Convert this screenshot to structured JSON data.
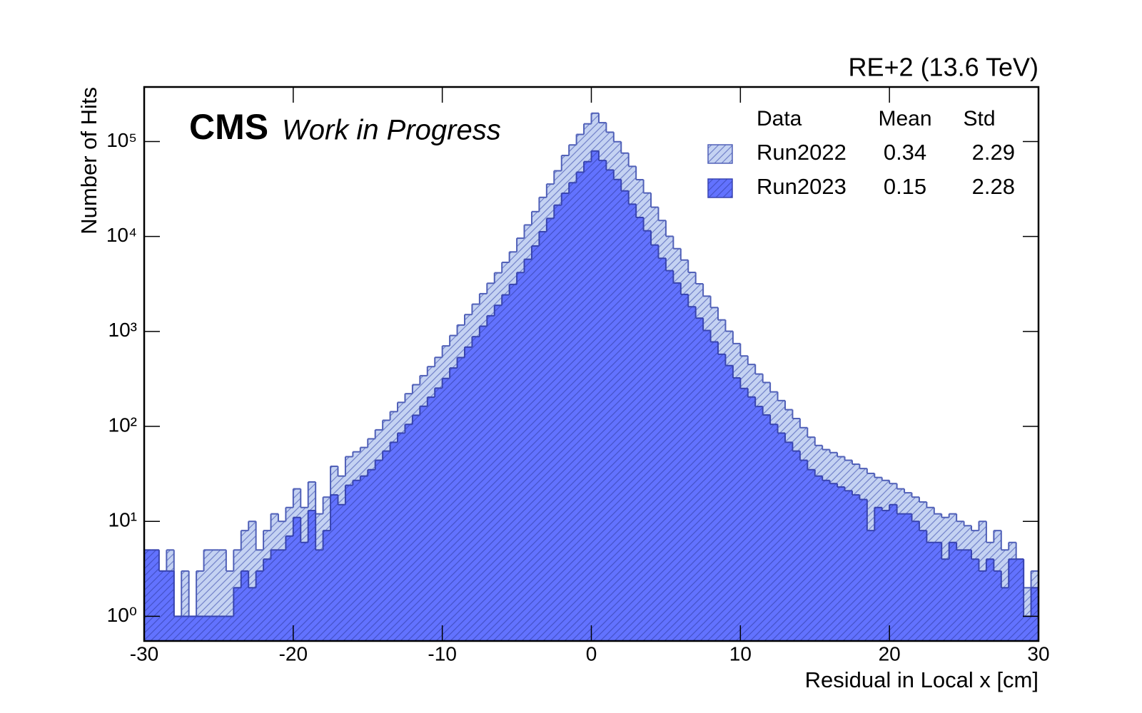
{
  "chart_data": {
    "type": "histogram",
    "title": "RE+2 (13.6 TeV)",
    "experiment": "CMS",
    "subtitle": "Work in Progress",
    "xlabel": "Residual in Local x [cm]",
    "ylabel": "Number of Hits",
    "log_y": true,
    "xlim": [
      -30,
      30
    ],
    "ylim": [
      0.55,
      375000
    ],
    "xticks": [
      -30,
      -20,
      -10,
      0,
      10,
      20,
      30
    ],
    "yticks": [
      {
        "value": 1,
        "label": "10⁰"
      },
      {
        "value": 10,
        "label": "10¹"
      },
      {
        "value": 100,
        "label": "10²"
      },
      {
        "value": 1000,
        "label": "10³"
      },
      {
        "value": 10000,
        "label": "10⁴"
      },
      {
        "value": 100000,
        "label": "10⁵"
      }
    ],
    "legend_position": "upper right",
    "legend_headers": [
      "Data",
      "Mean",
      "Std"
    ],
    "bins": [
      -30,
      -29.5,
      -29,
      -28.5,
      -28,
      -27.5,
      -27,
      -26.5,
      -26,
      -25.5,
      -25,
      -24.5,
      -24,
      -23.5,
      -23,
      -22.5,
      -22,
      -21.5,
      -21,
      -20.5,
      -20,
      -19.5,
      -19,
      -18.5,
      -18,
      -17.5,
      -17,
      -16.5,
      -16,
      -15.5,
      -15,
      -14.5,
      -14,
      -13.5,
      -13,
      -12.5,
      -12,
      -11.5,
      -11,
      -10.5,
      -10,
      -9.5,
      -9,
      -8.5,
      -8,
      -7.5,
      -7,
      -6.5,
      -6,
      -5.5,
      -5,
      -4.5,
      -4,
      -3.5,
      -3,
      -2.5,
      -2,
      -1.5,
      -1,
      -0.5,
      0,
      0.5,
      1,
      1.5,
      2,
      2.5,
      3,
      3.5,
      4,
      4.5,
      5,
      5.5,
      6,
      6.5,
      7,
      7.5,
      8,
      8.5,
      9,
      9.5,
      10,
      10.5,
      11,
      11.5,
      12,
      12.5,
      13,
      13.5,
      14,
      14.5,
      15,
      15.5,
      16,
      16.5,
      17,
      17.5,
      18,
      18.5,
      19,
      19.5,
      20,
      20.5,
      21,
      21.5,
      22,
      22.5,
      23,
      23.5,
      24,
      24.5,
      25,
      25.5,
      26,
      26.5,
      27,
      27.5,
      28,
      28.5,
      29,
      29.5,
      30
    ],
    "series": [
      {
        "name": "Run2022",
        "mean": 0.34,
        "std": 2.29,
        "color": "#c4d2f2",
        "edge_color": "#5060b8",
        "hatch": true,
        "values": [
          2,
          1,
          3,
          5,
          1,
          3,
          1,
          3,
          5,
          5,
          5,
          3,
          5,
          8,
          10,
          5,
          8,
          12,
          10,
          14,
          22,
          14,
          26,
          12,
          18,
          38,
          30,
          48,
          54,
          60,
          74,
          92,
          116,
          143,
          179,
          221,
          275,
          342,
          426,
          533,
          704,
          906,
          1168,
          1505,
          1938,
          2497,
          3216,
          4145,
          5339,
          6877,
          9589,
          13230,
          18270,
          25810,
          35630,
          49170,
          71280,
          92030,
          118800,
          153500,
          198600,
          157800,
          125300,
          99530,
          75500,
          54700,
          39630,
          28700,
          20330,
          14730,
          10040,
          7443,
          5647,
          4186,
          3174,
          2353,
          1785,
          1323,
          1005,
          745,
          552,
          449,
          356,
          290,
          231,
          187,
          150,
          121,
          97,
          77,
          63,
          57,
          53,
          48,
          44,
          40,
          36,
          32,
          29,
          27,
          25,
          22,
          20,
          18,
          16,
          14,
          12,
          11,
          12,
          10,
          9,
          8,
          10,
          6,
          8,
          5,
          6,
          4,
          2,
          3
        ]
      },
      {
        "name": "Run2023",
        "mean": 0.15,
        "std": 2.28,
        "color": "#6272ff",
        "edge_color": "#3844b0",
        "hatch": true,
        "values": [
          5,
          5,
          3,
          3,
          1,
          1,
          1,
          1,
          1,
          1,
          1,
          1,
          2,
          3,
          2,
          3,
          4,
          5,
          5,
          7,
          11,
          6,
          13,
          5,
          8,
          19,
          15,
          24,
          27,
          30,
          35,
          44,
          55,
          68,
          85,
          105,
          131,
          163,
          203,
          253,
          320,
          412,
          531,
          684,
          881,
          1135,
          1462,
          1884,
          2427,
          3126,
          4169,
          5754,
          7943,
          11220,
          15490,
          21380,
          28510,
          36810,
          47530,
          61380,
          79430,
          63100,
          50120,
          39810,
          30200,
          21880,
          15850,
          11480,
          8130,
          5890,
          4365,
          3236,
          2455,
          1820,
          1380,
          1023,
          776,
          575,
          437,
          324,
          251,
          204,
          162,
          132,
          105,
          85,
          68,
          55,
          44,
          35,
          30,
          27,
          25,
          23,
          21,
          19,
          17,
          8,
          14,
          13,
          15,
          12,
          12,
          10,
          8,
          6,
          6,
          4,
          6,
          5,
          5,
          4,
          3,
          4,
          3,
          2,
          4,
          4,
          1,
          2
        ]
      }
    ]
  }
}
